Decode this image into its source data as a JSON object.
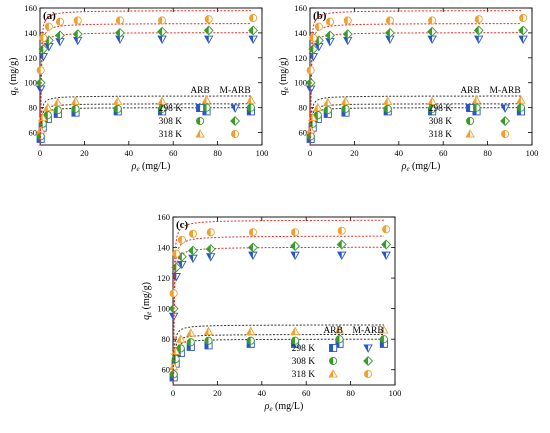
{
  "chart_data": [
    {
      "panel": "(a)",
      "type": "scatter",
      "xlabel_symbol": "ρ",
      "xlabel_sub": "e",
      "xlabel_unit": " (mg/L)",
      "ylabel_symbol": "q",
      "ylabel_sub": "e",
      "ylabel_unit": " (mg/g)",
      "xlim": [
        0,
        100
      ],
      "ylim": [
        50,
        160
      ],
      "xticks": [
        0,
        20,
        40,
        60,
        80,
        100
      ],
      "yticks": [
        60,
        80,
        100,
        120,
        140,
        160
      ],
      "fit_lines": true,
      "legend": {
        "position": "bottom-right",
        "headers": [
          "ARB",
          "M-ARB"
        ],
        "rows": [
          "298 K",
          "308 K",
          "318 K"
        ]
      },
      "series": [
        {
          "material": "ARB",
          "temp": "298 K",
          "color": "#2a56c6",
          "marker": "square-half",
          "x": [
            0.3,
            1.2,
            3.5,
            8,
            16,
            35,
            55,
            75,
            95
          ],
          "y": [
            55,
            64,
            71,
            75,
            76,
            77,
            77,
            77,
            77
          ]
        },
        {
          "material": "ARB",
          "temp": "308 K",
          "color": "#3a9a2c",
          "marker": "circle-half",
          "x": [
            0.3,
            1.2,
            3.5,
            8,
            16,
            35,
            55,
            75,
            95
          ],
          "y": [
            57,
            67,
            74,
            78,
            79,
            79,
            79,
            80,
            80
          ]
        },
        {
          "material": "ARB",
          "temp": "318 K",
          "color": "#f0a030",
          "marker": "triangle-half",
          "x": [
            0.3,
            1.2,
            3.5,
            8,
            16,
            35,
            55,
            75,
            95
          ],
          "y": [
            62,
            72,
            80,
            84,
            85,
            85,
            85,
            86,
            86
          ]
        },
        {
          "material": "M-ARB",
          "temp": "298 K",
          "color": "#2a56c6",
          "marker": "triangle-down-half",
          "x": [
            0.3,
            1.5,
            4,
            9,
            17,
            36,
            55,
            76,
            96
          ],
          "y": [
            95,
            121,
            129,
            133,
            134,
            135,
            135,
            135,
            135
          ]
        },
        {
          "material": "M-ARB",
          "temp": "308 K",
          "color": "#3a9a2c",
          "marker": "diamond-half",
          "x": [
            0.3,
            1.5,
            4,
            9,
            17,
            36,
            55,
            76,
            96
          ],
          "y": [
            100,
            127,
            134,
            138,
            139,
            140,
            141,
            142,
            142
          ]
        },
        {
          "material": "M-ARB",
          "temp": "318 K",
          "color": "#f0a030",
          "marker": "circle-half",
          "x": [
            0.3,
            1.5,
            4,
            9,
            17,
            36,
            55,
            76,
            96
          ],
          "y": [
            110,
            136,
            145,
            149,
            150,
            150,
            150,
            151,
            152
          ]
        }
      ]
    },
    {
      "panel": "(b)",
      "type": "scatter",
      "xlabel_symbol": "ρ",
      "xlabel_sub": "e",
      "xlabel_unit": " (mg/L)",
      "ylabel_symbol": "q",
      "ylabel_sub": "e",
      "ylabel_unit": " (mg/g)",
      "xlim": [
        0,
        100
      ],
      "ylim": [
        50,
        160
      ],
      "xticks": [
        0,
        20,
        40,
        60,
        80,
        100
      ],
      "yticks": [
        60,
        80,
        100,
        120,
        140,
        160
      ],
      "fit_lines": true,
      "legend": {
        "position": "bottom-right",
        "headers": [
          "ARB",
          "M-ARB"
        ],
        "rows": [
          "298 K",
          "308 K",
          "318 K"
        ]
      },
      "series": [
        {
          "material": "ARB",
          "temp": "298 K",
          "color": "#2a56c6",
          "marker": "square-half",
          "x": [
            0.3,
            1.2,
            3.5,
            8,
            16,
            35,
            55,
            75,
            95
          ],
          "y": [
            55,
            64,
            71,
            75,
            76,
            77,
            77,
            77,
            77
          ]
        },
        {
          "material": "ARB",
          "temp": "308 K",
          "color": "#3a9a2c",
          "marker": "circle-half",
          "x": [
            0.3,
            1.2,
            3.5,
            8,
            16,
            35,
            55,
            75,
            95
          ],
          "y": [
            57,
            67,
            74,
            78,
            79,
            79,
            79,
            80,
            80
          ]
        },
        {
          "material": "ARB",
          "temp": "318 K",
          "color": "#f0a030",
          "marker": "triangle-half",
          "x": [
            0.3,
            1.2,
            3.5,
            8,
            16,
            35,
            55,
            75,
            95
          ],
          "y": [
            62,
            72,
            80,
            84,
            85,
            85,
            85,
            86,
            86
          ]
        },
        {
          "material": "M-ARB",
          "temp": "298 K",
          "color": "#2a56c6",
          "marker": "triangle-down-half",
          "x": [
            0.3,
            1.5,
            4,
            9,
            17,
            36,
            55,
            76,
            96
          ],
          "y": [
            95,
            121,
            129,
            133,
            134,
            135,
            135,
            135,
            135
          ]
        },
        {
          "material": "M-ARB",
          "temp": "308 K",
          "color": "#3a9a2c",
          "marker": "diamond-half",
          "x": [
            0.3,
            1.5,
            4,
            9,
            17,
            36,
            55,
            76,
            96
          ],
          "y": [
            100,
            127,
            134,
            138,
            139,
            140,
            141,
            142,
            142
          ]
        },
        {
          "material": "M-ARB",
          "temp": "318 K",
          "color": "#f0a030",
          "marker": "circle-half",
          "x": [
            0.3,
            1.5,
            4,
            9,
            17,
            36,
            55,
            76,
            96
          ],
          "y": [
            110,
            136,
            145,
            149,
            150,
            150,
            150,
            151,
            152
          ]
        }
      ]
    },
    {
      "panel": "(c)",
      "type": "scatter",
      "xlabel_symbol": "ρ",
      "xlabel_sub": "e",
      "xlabel_unit": " (mg/L)",
      "ylabel_symbol": "q",
      "ylabel_sub": "e",
      "ylabel_unit": " (mg/g)",
      "xlim": [
        0,
        100
      ],
      "ylim": [
        50,
        160
      ],
      "xticks": [
        0,
        20,
        40,
        60,
        80,
        100
      ],
      "yticks": [
        60,
        80,
        100,
        120,
        140,
        160
      ],
      "fit_lines": true,
      "legend": {
        "position": "bottom-right",
        "headers": [
          "ARB",
          "M-ARB"
        ],
        "rows": [
          "298 K",
          "308 K",
          "318 K"
        ]
      },
      "series": [
        {
          "material": "ARB",
          "temp": "298 K",
          "color": "#2a56c6",
          "marker": "square-half",
          "x": [
            0.3,
            1.2,
            3.5,
            8,
            16,
            35,
            55,
            75,
            95
          ],
          "y": [
            55,
            64,
            71,
            75,
            76,
            77,
            77,
            77,
            77
          ]
        },
        {
          "material": "ARB",
          "temp": "308 K",
          "color": "#3a9a2c",
          "marker": "circle-half",
          "x": [
            0.3,
            1.2,
            3.5,
            8,
            16,
            35,
            55,
            75,
            95
          ],
          "y": [
            57,
            67,
            74,
            78,
            79,
            79,
            79,
            80,
            80
          ]
        },
        {
          "material": "ARB",
          "temp": "318 K",
          "color": "#f0a030",
          "marker": "triangle-half",
          "x": [
            0.3,
            1.2,
            3.5,
            8,
            16,
            35,
            55,
            75,
            95
          ],
          "y": [
            62,
            72,
            80,
            84,
            85,
            85,
            85,
            86,
            86
          ]
        },
        {
          "material": "M-ARB",
          "temp": "298 K",
          "color": "#2a56c6",
          "marker": "triangle-down-half",
          "x": [
            0.3,
            1.5,
            4,
            9,
            17,
            36,
            55,
            76,
            96
          ],
          "y": [
            95,
            121,
            129,
            133,
            134,
            135,
            135,
            135,
            135
          ]
        },
        {
          "material": "M-ARB",
          "temp": "308 K",
          "color": "#3a9a2c",
          "marker": "diamond-half",
          "x": [
            0.3,
            1.5,
            4,
            9,
            17,
            36,
            55,
            76,
            96
          ],
          "y": [
            100,
            127,
            134,
            138,
            139,
            140,
            141,
            142,
            142
          ]
        },
        {
          "material": "M-ARB",
          "temp": "318 K",
          "color": "#f0a030",
          "marker": "circle-half",
          "x": [
            0.3,
            1.5,
            4,
            9,
            17,
            36,
            55,
            76,
            96
          ],
          "y": [
            110,
            136,
            145,
            149,
            150,
            150,
            150,
            151,
            152
          ]
        }
      ]
    }
  ]
}
